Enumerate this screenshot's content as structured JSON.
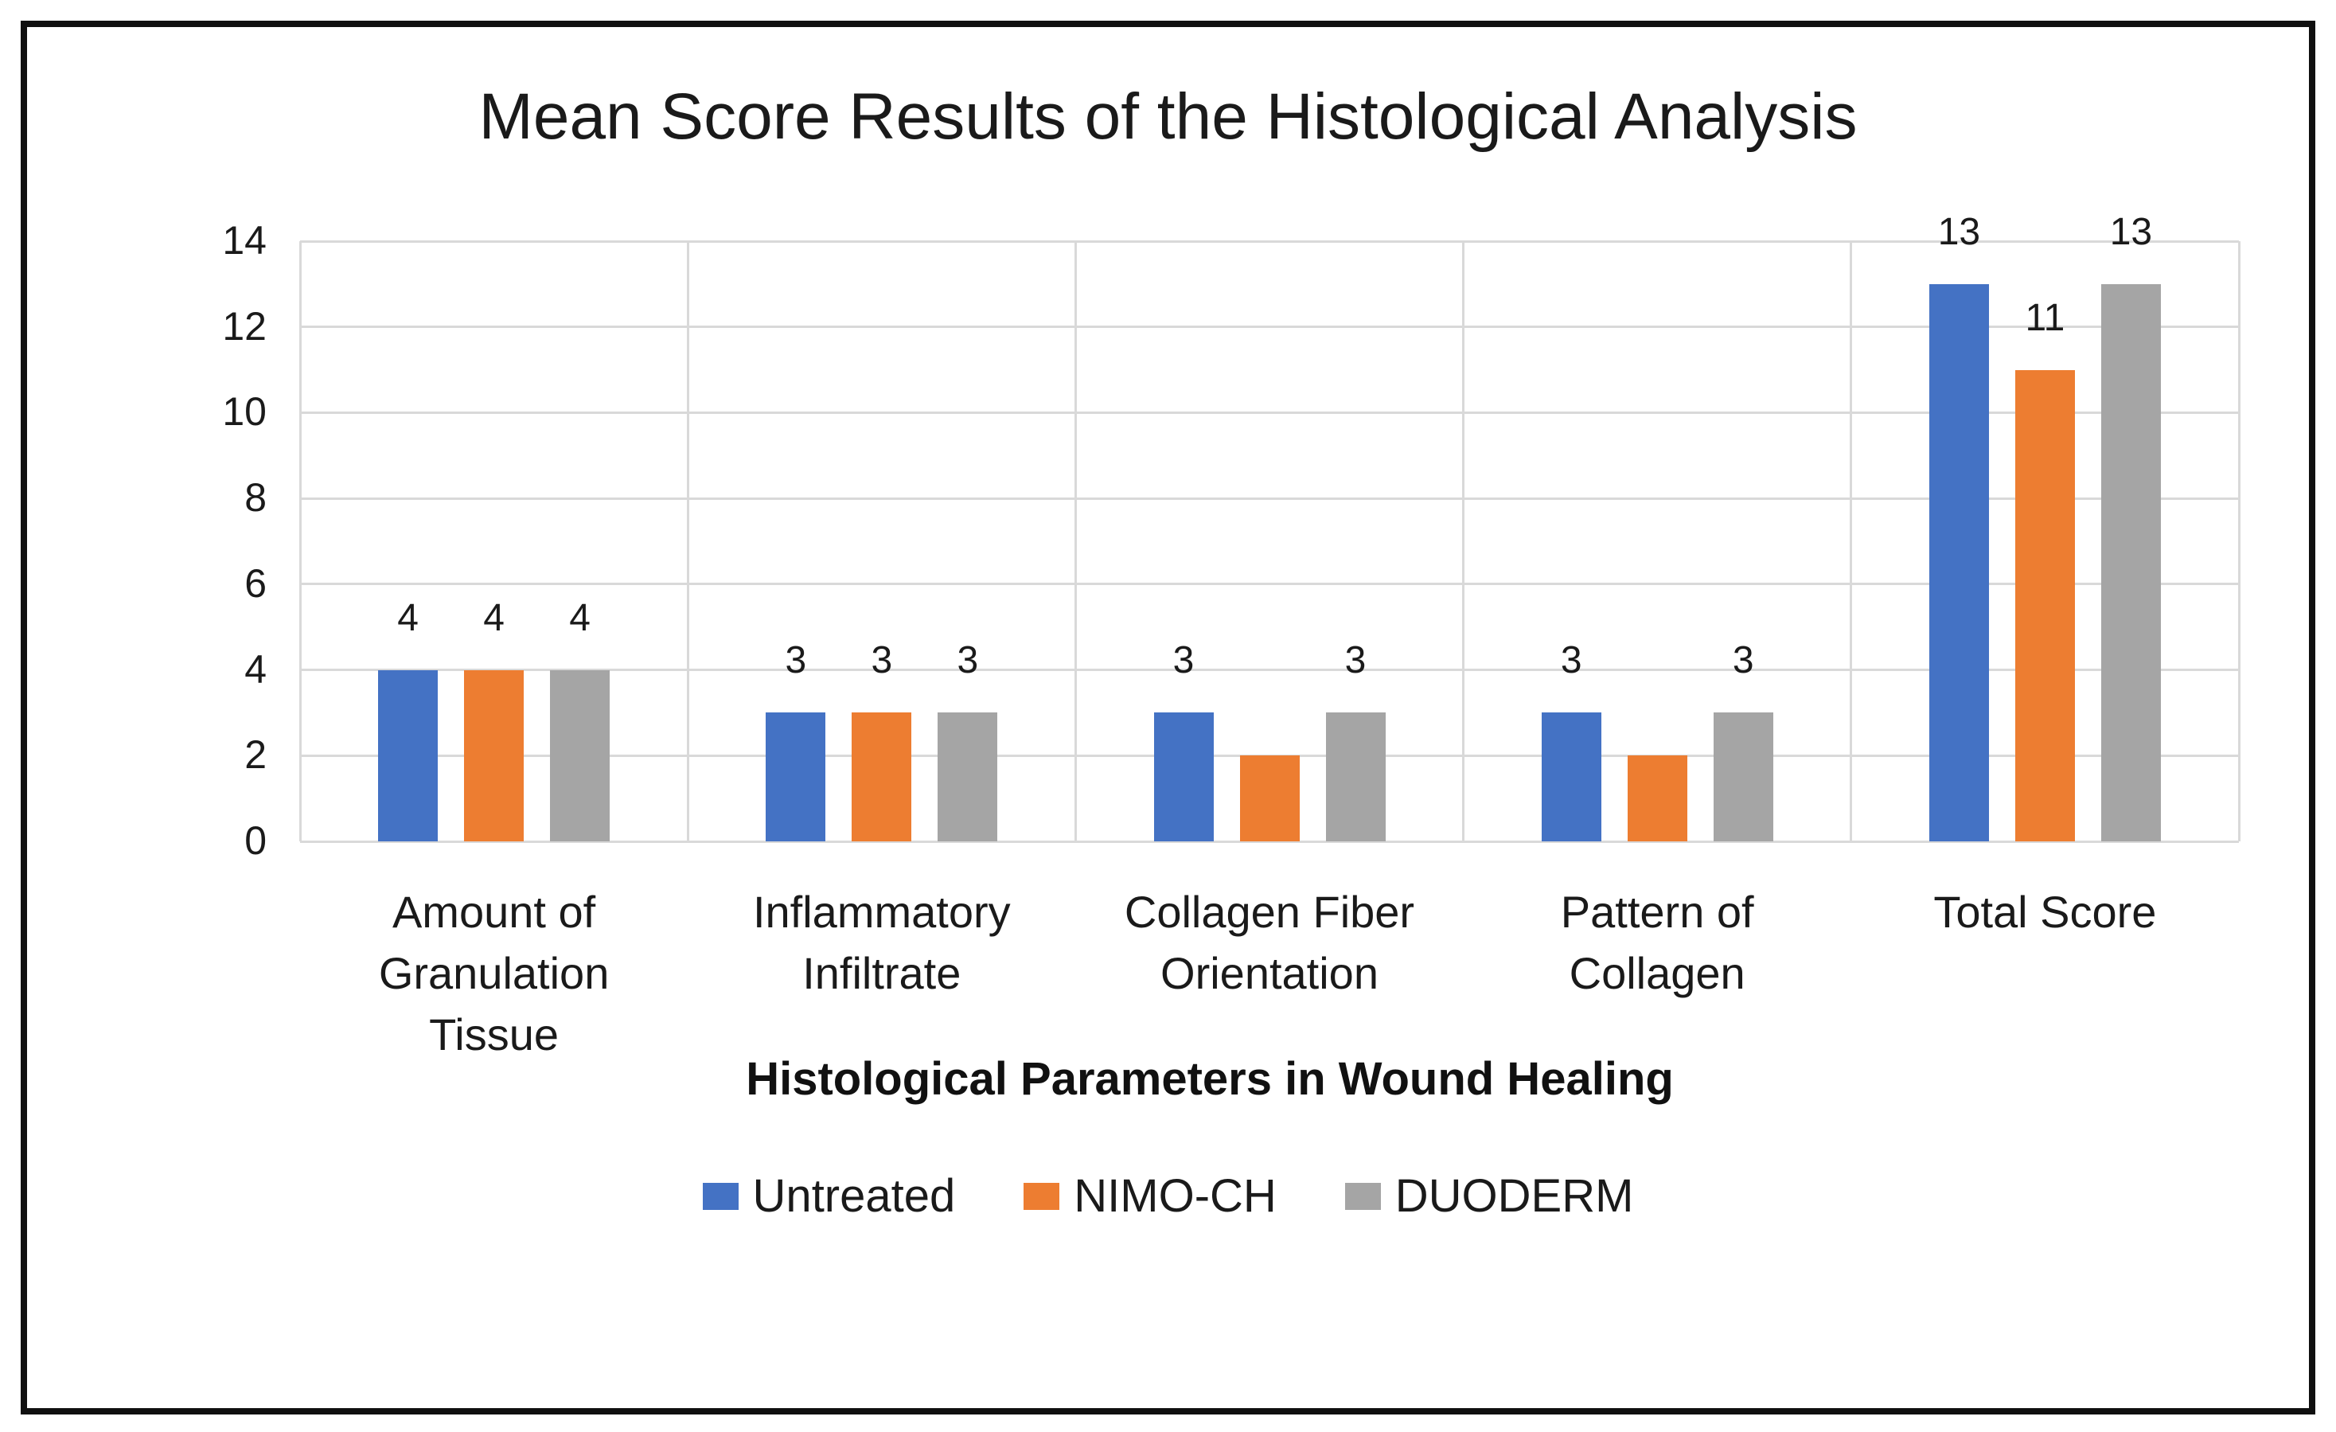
{
  "figure": {
    "background": "#ffffff",
    "border_color": "#101010",
    "gridline_color": "#d9d9d9",
    "text_color": "#1a1a1a"
  },
  "chart_data": {
    "type": "bar",
    "title": "Mean Score Results of the Histological Analysis",
    "xlabel": "Histological Parameters in Wound Healing",
    "ylabel": "",
    "ylim": [
      0,
      14
    ],
    "y_ticks": [
      0,
      2,
      4,
      6,
      8,
      10,
      12,
      14
    ],
    "grid": "horizontal major gridlines every 2; vertical category separators",
    "legend_position": "bottom",
    "categories": [
      "Amount of\nGranulation\nTissue",
      "Inflammatory\nInfiltrate",
      "Collagen Fiber\nOrientation",
      "Pattern of\nCollagen",
      "Total Score"
    ],
    "series": [
      {
        "name": "Untreated",
        "color": "#4472C4",
        "values": [
          4,
          3,
          3,
          3,
          13
        ],
        "data_labels": [
          "4",
          "3",
          "3",
          "3",
          "13"
        ]
      },
      {
        "name": "NIMO-CH",
        "color": "#ED7D31",
        "values": [
          4,
          3,
          2,
          2,
          11
        ],
        "data_labels": [
          "4",
          "3",
          null,
          null,
          "11"
        ]
      },
      {
        "name": "DUODERM",
        "color": "#A5A5A5",
        "values": [
          4,
          3,
          3,
          3,
          13
        ],
        "data_labels": [
          "4",
          "3",
          "3",
          "3",
          "13"
        ]
      }
    ]
  }
}
